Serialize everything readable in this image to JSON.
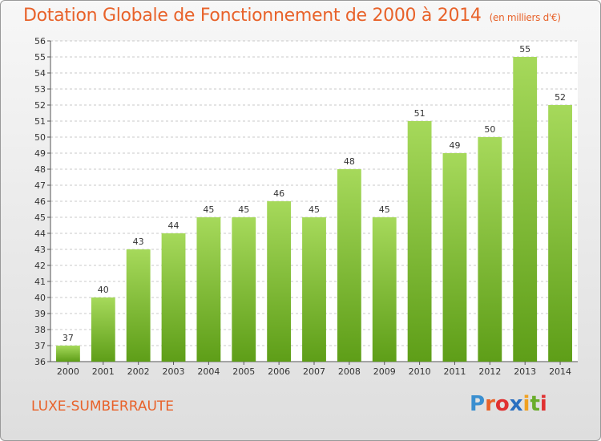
{
  "title": "Dotation Globale de Fonctionnement de 2000 à 2014",
  "subtitle": "(en milliers d'€)",
  "commune": "LUXE-SUMBERRAUTE",
  "logo_text": "Proxiti",
  "colors": {
    "title": "#e8622a",
    "bar_top": "#a6d95b",
    "bar_bottom": "#5e9e18",
    "grid": "#c8c8c8"
  },
  "chart_data": {
    "type": "bar",
    "categories": [
      "2000",
      "2001",
      "2002",
      "2003",
      "2004",
      "2005",
      "2006",
      "2007",
      "2008",
      "2009",
      "2010",
      "2011",
      "2012",
      "2013",
      "2014"
    ],
    "values": [
      37,
      40,
      43,
      44,
      45,
      45,
      46,
      45,
      48,
      45,
      51,
      49,
      50,
      55,
      52
    ],
    "ylim": [
      36,
      56
    ],
    "yticks": [
      36,
      37,
      38,
      39,
      40,
      41,
      42,
      43,
      44,
      45,
      46,
      47,
      48,
      49,
      50,
      51,
      52,
      53,
      54,
      55,
      56
    ],
    "grid": "horizontal dashed",
    "legend": "none",
    "xlabel": "",
    "ylabel": ""
  }
}
